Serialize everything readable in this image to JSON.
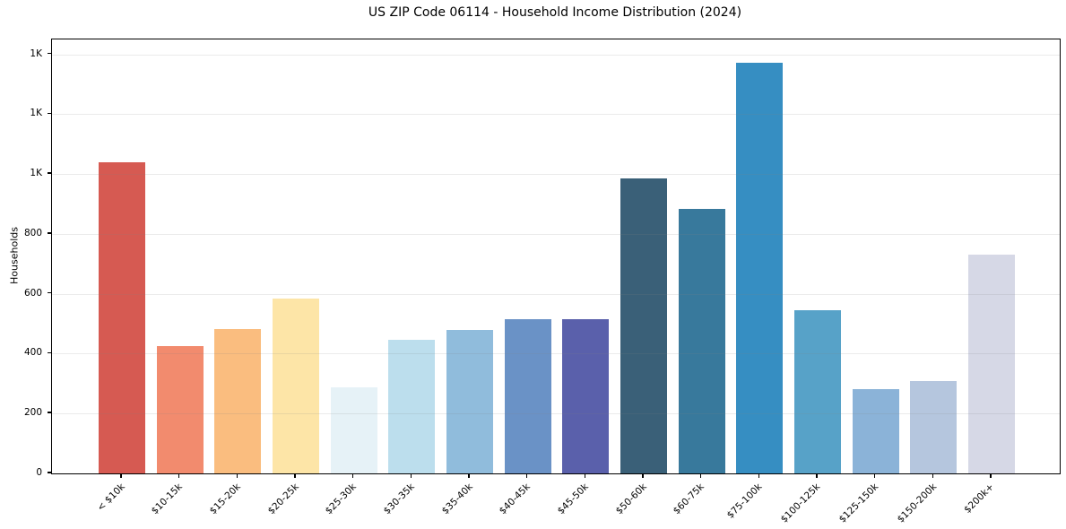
{
  "figure": {
    "title": "US ZIP Code 06114 - Household Income Distribution (2024)"
  },
  "chart_data": {
    "type": "bar",
    "title": "US ZIP Code 06114 - Household Income Distribution (2024)",
    "xlabel": "",
    "ylabel": "Households",
    "categories": [
      "< $10k",
      "$10-15k",
      "$15-20k",
      "$20-25k",
      "$25-30k",
      "$30-35k",
      "$35-40k",
      "$40-45k",
      "$45-50k",
      "$50-60k",
      "$60-75k",
      "$75-100k",
      "$100-125k",
      "$125-150k",
      "$150-200k",
      "$200k+"
    ],
    "values": [
      1040,
      426,
      482,
      583,
      288,
      446,
      479,
      515,
      515,
      985,
      883,
      1373,
      545,
      282,
      308,
      730
    ],
    "bar_colors": [
      "#d65a52",
      "#f28b6e",
      "#fabd7f",
      "#fde5a7",
      "#e6f2f7",
      "#bcdeed",
      "#90bcdc",
      "#6a92c6",
      "#5a60ab",
      "#3a6078",
      "#38799c",
      "#368ec2",
      "#57a2c8",
      "#8bb3d8",
      "#b5c6de",
      "#d6d8e6"
    ],
    "ylim": [
      0,
      1450
    ],
    "yticks": [
      0,
      200,
      400,
      600,
      800,
      1000,
      1200,
      1400
    ],
    "ytick_labels": [
      "0",
      "200",
      "400",
      "600",
      "800",
      "1K",
      "1K",
      "1K"
    ],
    "grid": "horizontal",
    "grid_on": true,
    "legend": "none",
    "x_tick_rotation": 45,
    "frame": "full-box",
    "background_color": "#ffffff",
    "spine_color": "#000000"
  }
}
